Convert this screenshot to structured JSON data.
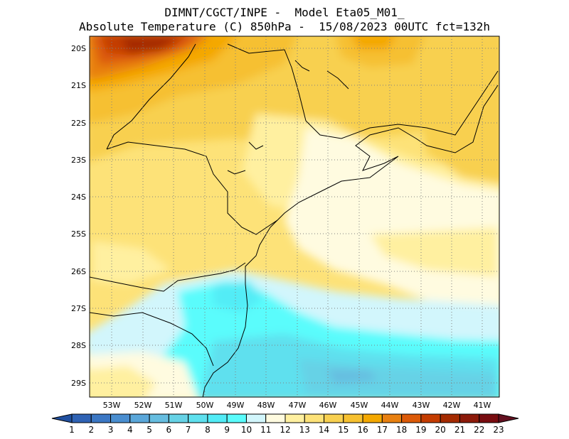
{
  "header": {
    "line1": "DIMNT/CGCT/INPE -  Model Eta05_M01_",
    "line2": "Absolute Temperature (C) 850hPa -  15/08/2023 00UTC fct=132h"
  },
  "map": {
    "lat_labels": [
      "20S",
      "21S",
      "22S",
      "23S",
      "24S",
      "25S",
      "26S",
      "27S",
      "28S",
      "29S"
    ],
    "lon_labels": [
      "53W",
      "52W",
      "51W",
      "50W",
      "49W",
      "48W",
      "47W",
      "46W",
      "45W",
      "44W",
      "43W",
      "42W",
      "41W"
    ],
    "grid": "dotted",
    "extent": {
      "lon_west": -53.7,
      "lon_east": -40.5,
      "lat_north": -19.8,
      "lat_south": -29.4
    }
  },
  "colorbar": {
    "labels": [
      "1",
      "2",
      "3",
      "4",
      "5",
      "6",
      "7",
      "8",
      "9",
      "10",
      "11",
      "12",
      "13",
      "14",
      "15",
      "16",
      "17",
      "18",
      "19",
      "20",
      "21",
      "22",
      "23"
    ],
    "colors": [
      "#2050a0",
      "#2f62b4",
      "#3b77c4",
      "#4a8ed0",
      "#5ba7da",
      "#66bde0",
      "#66d2e6",
      "#5ee0ee",
      "#52ecf6",
      "#5afcfc",
      "#d2f6fc",
      "#fffbe0",
      "#fff0a0",
      "#fde278",
      "#f8d050",
      "#f6c030",
      "#f4a800",
      "#e88010",
      "#dc5a08",
      "#c43c00",
      "#a42a00",
      "#8c1a0a",
      "#780c10",
      "#641020"
    ]
  }
}
